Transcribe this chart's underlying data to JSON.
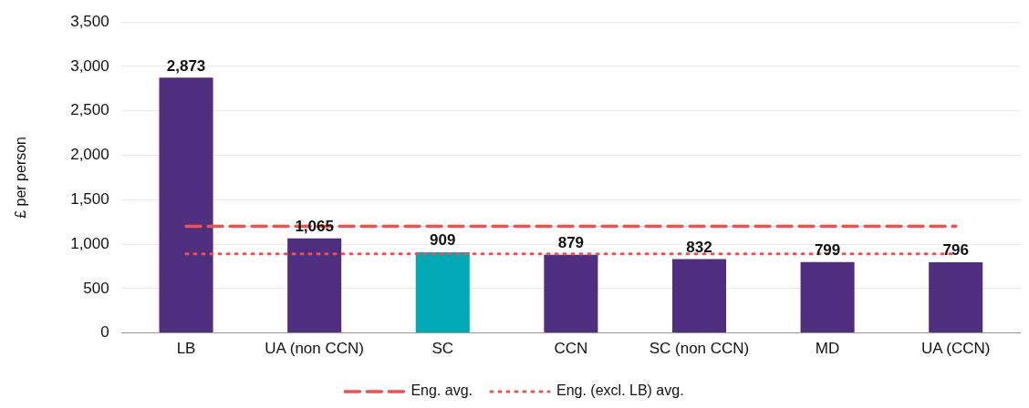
{
  "chart_data": {
    "type": "bar",
    "ylabel": "£ per person",
    "categories": [
      "LB",
      "UA (non CCN)",
      "SC",
      "CCN",
      "SC (non CCN)",
      "MD",
      "UA (CCN)"
    ],
    "series": [
      {
        "values": [
          2873,
          1065,
          909,
          879,
          832,
          799,
          796
        ],
        "colors": [
          "#4f2d7f",
          "#4f2d7f",
          "#00a9b5",
          "#4f2d7f",
          "#4f2d7f",
          "#4f2d7f",
          "#4f2d7f"
        ],
        "value_labels": [
          "2,873",
          "1,065",
          "909",
          "879",
          "832",
          "799",
          "796"
        ]
      },
      {
        "type": "line",
        "name": "Eng. avg.",
        "color": "#f0504f",
        "line_style": "dashed",
        "values": [
          1200,
          1200,
          1200,
          1200,
          1200,
          1200,
          1200
        ]
      },
      {
        "type": "line",
        "name": "Eng. (excl. LB) avg.",
        "color": "#f0504f",
        "line_style": "dotted",
        "values": [
          890,
          890,
          890,
          890,
          890,
          890,
          890
        ]
      }
    ],
    "ylim": [
      0,
      3500
    ],
    "yticks": [
      0,
      500,
      {
        "value": 1000,
        "label": "1,000"
      },
      {
        "value": 1500,
        "label": "1,500"
      },
      {
        "value": 2000,
        "label": "2,000"
      },
      {
        "value": 2500,
        "label": "2,500"
      },
      {
        "value": 3000,
        "label": "3,000"
      },
      {
        "value": 3500,
        "label": "3,500"
      }
    ],
    "grid": "y",
    "legend": "bottom",
    "marker": "none"
  }
}
